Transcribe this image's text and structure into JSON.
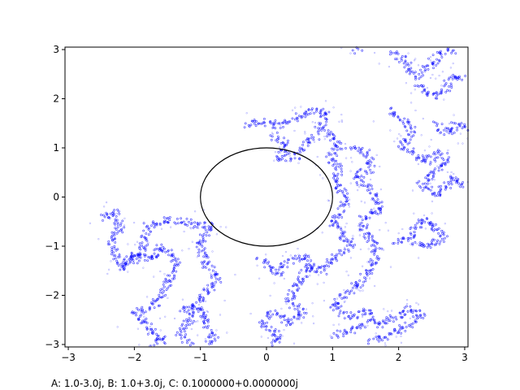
{
  "chart_data": {
    "type": "scatter",
    "title": "",
    "xlabel": "",
    "ylabel": "",
    "xlim": [
      -3.05,
      3.05
    ],
    "ylim": [
      -3.05,
      3.05
    ],
    "x_ticks": [
      -3,
      -2,
      -1,
      0,
      1,
      2,
      3
    ],
    "y_ticks": [
      -3,
      -2,
      -1,
      0,
      1,
      2,
      3
    ],
    "x_tick_labels": [
      "−3",
      "−2",
      "−1",
      "0",
      "1",
      "2",
      "3"
    ],
    "y_tick_labels": [
      "−3",
      "−2",
      "−1",
      "0",
      "1",
      "2",
      "3"
    ],
    "grid": false,
    "colors": {
      "points": "#0000ff",
      "circle": "#000000",
      "axes": "#000000"
    },
    "unit_circle": {
      "center": [
        0,
        0
      ],
      "radius": 1
    },
    "series": [
      {
        "marker": "point",
        "clusters": [
          {
            "path": [
              [
                -2.5,
                -0.45
              ],
              [
                -2.3,
                -0.3
              ],
              [
                -2.2,
                -0.6
              ],
              [
                -2.35,
                -0.95
              ],
              [
                -2.2,
                -1.4
              ],
              [
                -1.9,
                -1.2
              ],
              [
                -1.8,
                -0.6
              ],
              [
                -1.5,
                -0.45
              ],
              [
                -1.2,
                -0.5
              ],
              [
                -1.05,
                -0.6
              ],
              [
                -0.85,
                -0.55
              ],
              [
                -1.0,
                -0.9
              ],
              [
                -0.95,
                -1.3
              ],
              [
                -0.75,
                -1.7
              ],
              [
                -1.0,
                -2.1
              ],
              [
                -1.15,
                -2.45
              ],
              [
                -1.3,
                -2.75
              ],
              [
                -1.15,
                -3.0
              ]
            ]
          },
          {
            "path": [
              [
                -2.2,
                -1.45
              ],
              [
                -2.0,
                -1.15
              ],
              [
                -1.75,
                -1.3
              ],
              [
                -1.6,
                -1.0
              ],
              [
                -1.35,
                -1.3
              ],
              [
                -1.5,
                -1.75
              ],
              [
                -1.7,
                -2.2
              ],
              [
                -2.0,
                -2.35
              ],
              [
                -1.75,
                -2.7
              ],
              [
                -1.55,
                -2.9
              ],
              [
                -1.75,
                -3.0
              ]
            ]
          },
          {
            "path": [
              [
                -1.3,
                -2.3
              ],
              [
                -1.05,
                -2.2
              ],
              [
                -0.95,
                -2.5
              ],
              [
                -0.8,
                -2.9
              ],
              [
                -0.9,
                -3.0
              ]
            ]
          },
          {
            "path": [
              [
                -0.3,
                1.45
              ],
              [
                -0.05,
                1.55
              ],
              [
                0.2,
                1.45
              ],
              [
                0.45,
                1.6
              ],
              [
                0.65,
                1.75
              ],
              [
                0.9,
                1.75
              ],
              [
                0.8,
                1.4
              ],
              [
                1.0,
                1.25
              ],
              [
                1.1,
                1.05
              ],
              [
                0.95,
                0.8
              ],
              [
                1.1,
                0.55
              ],
              [
                1.05,
                0.25
              ],
              [
                1.2,
                0.05
              ],
              [
                1.15,
                -0.25
              ],
              [
                1.0,
                -0.5
              ],
              [
                1.15,
                -0.8
              ],
              [
                1.3,
                -0.95
              ],
              [
                1.05,
                -1.2
              ],
              [
                0.85,
                -1.5
              ],
              [
                0.6,
                -1.45
              ],
              [
                0.45,
                -1.8
              ],
              [
                0.35,
                -2.15
              ],
              [
                0.55,
                -2.35
              ],
              [
                0.3,
                -2.55
              ],
              [
                0.1,
                -2.35
              ],
              [
                -0.05,
                -2.6
              ],
              [
                0.2,
                -2.85
              ],
              [
                0.05,
                -3.0
              ]
            ]
          },
          {
            "path": [
              [
                0.1,
                1.25
              ],
              [
                0.3,
                1.05
              ],
              [
                0.2,
                0.75
              ],
              [
                0.45,
                0.85
              ],
              [
                0.6,
                1.05
              ],
              [
                0.75,
                1.25
              ]
            ]
          },
          {
            "path": [
              [
                -0.1,
                -1.25
              ],
              [
                0.15,
                -1.55
              ],
              [
                0.35,
                -1.3
              ],
              [
                0.6,
                -1.2
              ],
              [
                0.7,
                -1.5
              ]
            ]
          },
          {
            "path": [
              [
                1.25,
                1.0
              ],
              [
                1.5,
                0.9
              ],
              [
                1.6,
                0.6
              ],
              [
                1.35,
                0.4
              ],
              [
                1.6,
                0.1
              ],
              [
                1.75,
                -0.25
              ],
              [
                1.45,
                -0.45
              ],
              [
                1.5,
                -0.8
              ],
              [
                1.7,
                -1.0
              ],
              [
                1.6,
                -1.35
              ],
              [
                1.45,
                -1.7
              ],
              [
                1.25,
                -1.95
              ],
              [
                1.0,
                -2.2
              ],
              [
                1.25,
                -2.45
              ],
              [
                1.5,
                -2.3
              ],
              [
                1.7,
                -2.6
              ],
              [
                1.95,
                -2.45
              ],
              [
                2.15,
                -2.25
              ],
              [
                2.35,
                -2.4
              ],
              [
                2.15,
                -2.6
              ],
              [
                1.85,
                -2.8
              ],
              [
                1.55,
                -2.95
              ]
            ]
          },
          {
            "path": [
              [
                1.0,
                -2.8
              ],
              [
                1.3,
                -2.7
              ],
              [
                1.55,
                -2.55
              ]
            ]
          },
          {
            "path": [
              [
                1.85,
                1.75
              ],
              [
                2.05,
                1.6
              ],
              [
                2.2,
                1.35
              ],
              [
                2.05,
                1.05
              ],
              [
                2.25,
                0.85
              ],
              [
                2.45,
                0.7
              ],
              [
                2.6,
                0.9
              ],
              [
                2.75,
                0.75
              ],
              [
                2.55,
                0.5
              ],
              [
                2.35,
                0.25
              ],
              [
                2.6,
                0.05
              ],
              [
                2.85,
                0.4
              ],
              [
                3.0,
                0.2
              ]
            ]
          },
          {
            "path": [
              [
                1.95,
                -0.95
              ],
              [
                2.2,
                -0.8
              ],
              [
                2.35,
                -0.45
              ],
              [
                2.55,
                -0.6
              ],
              [
                2.7,
                -0.85
              ],
              [
                2.45,
                -1.0
              ],
              [
                2.2,
                -0.9
              ]
            ]
          },
          {
            "path": [
              [
                1.9,
                2.95
              ],
              [
                2.1,
                2.75
              ],
              [
                2.25,
                2.45
              ],
              [
                2.45,
                2.65
              ],
              [
                2.65,
                2.95
              ],
              [
                2.85,
                3.0
              ]
            ]
          },
          {
            "path": [
              [
                2.3,
                2.3
              ],
              [
                2.5,
                2.05
              ],
              [
                2.7,
                2.2
              ],
              [
                2.85,
                2.5
              ],
              [
                3.0,
                2.4
              ]
            ]
          },
          {
            "path": [
              [
                2.55,
                1.5
              ],
              [
                2.75,
                1.3
              ],
              [
                2.9,
                1.5
              ],
              [
                3.05,
                1.35
              ]
            ]
          },
          {
            "path": [
              [
                1.35,
                2.95
              ],
              [
                1.45,
                3.0
              ]
            ]
          }
        ]
      }
    ],
    "annotation": "A: 1.0-3.0j, B: 1.0+3.0j, C: 0.1000000+0.0000000j"
  }
}
